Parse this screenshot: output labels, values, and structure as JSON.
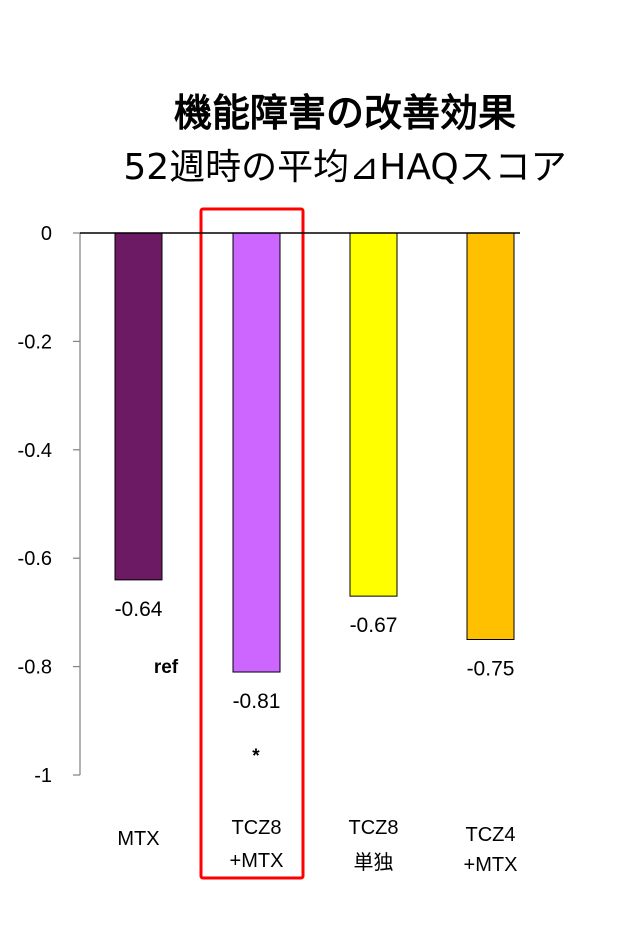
{
  "chart_data": {
    "type": "bar",
    "title": "機能障害の改善効果",
    "subtitle": "52週時の平均⊿HAQスコア",
    "categories": [
      [
        "MTX"
      ],
      [
        "TCZ8",
        "+MTX"
      ],
      [
        "TCZ8",
        "単独"
      ],
      [
        "TCZ4",
        "+MTX"
      ]
    ],
    "values": [
      -0.64,
      -0.81,
      -0.67,
      -0.75
    ],
    "value_labels": [
      "-0.64",
      "-0.81",
      "-0.67",
      "-0.75"
    ],
    "colors": [
      "#6B1A63",
      "#CC66FF",
      "#FFFF00",
      "#FFC000"
    ],
    "ylim": [
      -1,
      0
    ],
    "yticks": [
      0,
      -0.2,
      -0.4,
      -0.6,
      -0.8,
      -1
    ],
    "ytick_labels": [
      "0",
      "-0.2",
      "-0.4",
      "-0.6",
      "-0.8",
      "-1"
    ],
    "annotations": {
      "ref": "ref",
      "significance": "*"
    },
    "highlight_color": "#FF0000",
    "grid": false
  }
}
